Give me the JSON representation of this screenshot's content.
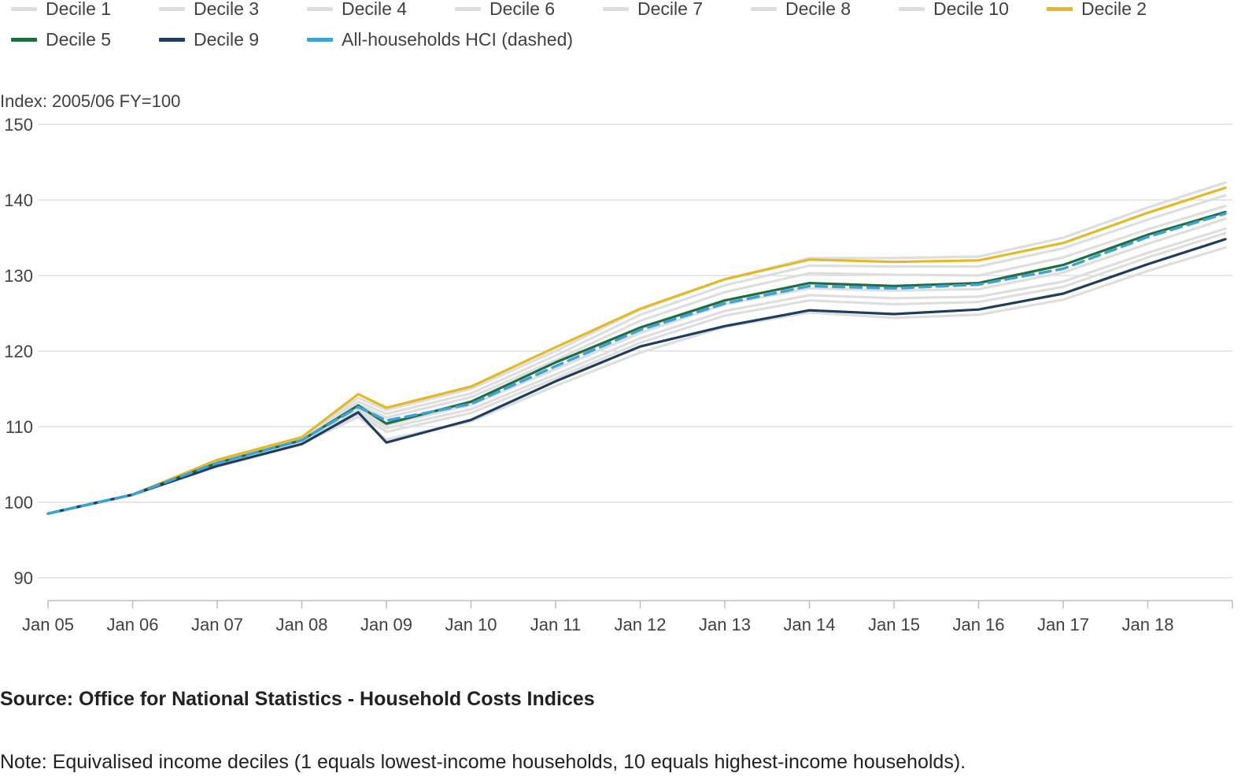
{
  "chart_data": {
    "type": "line",
    "y_unit_label": "Index: 2005/06 FY=100",
    "source": "Source: Office for National Statistics - Household Costs Indices",
    "note": "Note: Equivalised income deciles (1 equals lowest-income households, 10 equals highest-income households).",
    "ylim": [
      90,
      150
    ],
    "yticks": [
      90,
      100,
      110,
      120,
      130,
      140,
      150
    ],
    "grid": true,
    "legend_position": "top",
    "x_start": "2005-01",
    "x_end": "2018-12",
    "xticks": [
      {
        "x": "2005-01",
        "label": "Jan 05"
      },
      {
        "x": "2006-01",
        "label": "Jan 06"
      },
      {
        "x": "2007-01",
        "label": "Jan 07"
      },
      {
        "x": "2008-01",
        "label": "Jan 08"
      },
      {
        "x": "2009-01",
        "label": "Jan 09"
      },
      {
        "x": "2010-01",
        "label": "Jan 10"
      },
      {
        "x": "2011-01",
        "label": "Jan 11"
      },
      {
        "x": "2012-01",
        "label": "Jan 12"
      },
      {
        "x": "2013-01",
        "label": "Jan 13"
      },
      {
        "x": "2014-01",
        "label": "Jan 14"
      },
      {
        "x": "2015-01",
        "label": "Jan 15"
      },
      {
        "x": "2016-01",
        "label": "Jan 16"
      },
      {
        "x": "2017-01",
        "label": "Jan 17"
      },
      {
        "x": "2018-01",
        "label": "Jan 18"
      }
    ],
    "series": [
      {
        "name": "Decile 1",
        "color": "#dedede",
        "points": [
          [
            "2005-01",
            98.5
          ],
          [
            "2006-01",
            101.0
          ],
          [
            "2007-01",
            105.5
          ],
          [
            "2008-01",
            108.6
          ],
          [
            "2008-09",
            113.8
          ],
          [
            "2009-01",
            112.2
          ],
          [
            "2010-01",
            115.0
          ],
          [
            "2011-01",
            120.0
          ],
          [
            "2012-01",
            125.5
          ],
          [
            "2013-01",
            129.5
          ],
          [
            "2014-01",
            132.3
          ],
          [
            "2015-01",
            132.3
          ],
          [
            "2016-01",
            132.5
          ],
          [
            "2017-01",
            135.0
          ],
          [
            "2018-01",
            139.0
          ],
          [
            "2018-12",
            142.3
          ]
        ]
      },
      {
        "name": "Decile 3",
        "color": "#dedede",
        "points": [
          [
            "2005-01",
            98.5
          ],
          [
            "2006-01",
            101.0
          ],
          [
            "2007-01",
            105.4
          ],
          [
            "2008-01",
            108.5
          ],
          [
            "2008-09",
            113.3
          ],
          [
            "2009-01",
            111.7
          ],
          [
            "2010-01",
            114.4
          ],
          [
            "2011-01",
            119.4
          ],
          [
            "2012-01",
            124.8
          ],
          [
            "2013-01",
            128.7
          ],
          [
            "2014-01",
            131.3
          ],
          [
            "2015-01",
            131.2
          ],
          [
            "2016-01",
            131.2
          ],
          [
            "2017-01",
            133.6
          ],
          [
            "2018-01",
            137.4
          ],
          [
            "2018-12",
            140.6
          ]
        ]
      },
      {
        "name": "Decile 4",
        "color": "#dedede",
        "points": [
          [
            "2005-01",
            98.5
          ],
          [
            "2006-01",
            101.0
          ],
          [
            "2007-01",
            105.3
          ],
          [
            "2008-01",
            108.4
          ],
          [
            "2008-09",
            112.9
          ],
          [
            "2009-01",
            111.2
          ],
          [
            "2010-01",
            113.9
          ],
          [
            "2011-01",
            118.8
          ],
          [
            "2012-01",
            124.0
          ],
          [
            "2013-01",
            127.8
          ],
          [
            "2014-01",
            130.3
          ],
          [
            "2015-01",
            130.1
          ],
          [
            "2016-01",
            130.0
          ],
          [
            "2017-01",
            132.4
          ],
          [
            "2018-01",
            136.1
          ],
          [
            "2018-12",
            139.2
          ]
        ]
      },
      {
        "name": "Decile 6",
        "color": "#dedede",
        "points": [
          [
            "2005-01",
            98.5
          ],
          [
            "2006-01",
            101.0
          ],
          [
            "2007-01",
            105.1
          ],
          [
            "2008-01",
            108.1
          ],
          [
            "2008-09",
            112.3
          ],
          [
            "2009-01",
            110.2
          ],
          [
            "2010-01",
            112.9
          ],
          [
            "2011-01",
            117.6
          ],
          [
            "2012-01",
            122.4
          ],
          [
            "2013-01",
            126.2
          ],
          [
            "2014-01",
            128.3
          ],
          [
            "2015-01",
            128.0
          ],
          [
            "2016-01",
            128.2
          ],
          [
            "2017-01",
            130.4
          ],
          [
            "2018-01",
            134.2
          ],
          [
            "2018-12",
            137.5
          ]
        ]
      },
      {
        "name": "Decile 7",
        "color": "#dedede",
        "points": [
          [
            "2005-01",
            98.5
          ],
          [
            "2006-01",
            101.0
          ],
          [
            "2007-01",
            105.0
          ],
          [
            "2008-01",
            108.0
          ],
          [
            "2008-09",
            112.0
          ],
          [
            "2009-01",
            109.8
          ],
          [
            "2010-01",
            112.3
          ],
          [
            "2011-01",
            116.9
          ],
          [
            "2012-01",
            121.7
          ],
          [
            "2013-01",
            125.3
          ],
          [
            "2014-01",
            127.4
          ],
          [
            "2015-01",
            127.0
          ],
          [
            "2016-01",
            127.2
          ],
          [
            "2017-01",
            129.2
          ],
          [
            "2018-01",
            133.0
          ],
          [
            "2018-12",
            136.2
          ]
        ]
      },
      {
        "name": "Decile 8",
        "color": "#dedede",
        "points": [
          [
            "2005-01",
            98.5
          ],
          [
            "2006-01",
            101.0
          ],
          [
            "2007-01",
            104.9
          ],
          [
            "2008-01",
            107.9
          ],
          [
            "2008-09",
            111.7
          ],
          [
            "2009-01",
            109.3
          ],
          [
            "2010-01",
            111.8
          ],
          [
            "2011-01",
            116.4
          ],
          [
            "2012-01",
            121.1
          ],
          [
            "2013-01",
            124.7
          ],
          [
            "2014-01",
            126.7
          ],
          [
            "2015-01",
            126.2
          ],
          [
            "2016-01",
            126.5
          ],
          [
            "2017-01",
            128.5
          ],
          [
            "2018-01",
            132.4
          ],
          [
            "2018-12",
            135.6
          ]
        ]
      },
      {
        "name": "Decile 10",
        "color": "#dedede",
        "points": [
          [
            "2005-01",
            98.5
          ],
          [
            "2006-01",
            101.0
          ],
          [
            "2007-01",
            104.7
          ],
          [
            "2008-01",
            107.7
          ],
          [
            "2008-09",
            111.3
          ],
          [
            "2009-01",
            108.3
          ],
          [
            "2010-01",
            110.7
          ],
          [
            "2011-01",
            115.4
          ],
          [
            "2012-01",
            119.8
          ],
          [
            "2013-01",
            123.2
          ],
          [
            "2014-01",
            125.1
          ],
          [
            "2015-01",
            124.4
          ],
          [
            "2016-01",
            124.8
          ],
          [
            "2017-01",
            126.8
          ],
          [
            "2018-01",
            130.6
          ],
          [
            "2018-12",
            133.7
          ]
        ]
      },
      {
        "name": "Decile 2",
        "color": "#e3b925",
        "points": [
          [
            "2005-01",
            98.5
          ],
          [
            "2006-01",
            101.0
          ],
          [
            "2007-01",
            105.6
          ],
          [
            "2008-01",
            108.6
          ],
          [
            "2008-09",
            114.3
          ],
          [
            "2009-01",
            112.5
          ],
          [
            "2010-01",
            115.3
          ],
          [
            "2011-01",
            120.5
          ],
          [
            "2012-01",
            125.6
          ],
          [
            "2013-01",
            129.5
          ],
          [
            "2014-01",
            132.1
          ],
          [
            "2015-01",
            131.8
          ],
          [
            "2016-01",
            132.0
          ],
          [
            "2017-01",
            134.3
          ],
          [
            "2018-01",
            138.3
          ],
          [
            "2018-12",
            141.6
          ]
        ]
      },
      {
        "name": "Decile 5",
        "color": "#206d3e",
        "points": [
          [
            "2005-01",
            98.5
          ],
          [
            "2006-01",
            101.0
          ],
          [
            "2007-01",
            105.2
          ],
          [
            "2008-01",
            108.2
          ],
          [
            "2008-09",
            112.8
          ],
          [
            "2009-01",
            110.4
          ],
          [
            "2010-01",
            113.3
          ],
          [
            "2011-01",
            118.5
          ],
          [
            "2012-01",
            123.1
          ],
          [
            "2013-01",
            126.7
          ],
          [
            "2014-01",
            129.0
          ],
          [
            "2015-01",
            128.6
          ],
          [
            "2016-01",
            129.0
          ],
          [
            "2017-01",
            131.4
          ],
          [
            "2018-01",
            135.4
          ],
          [
            "2018-12",
            138.4
          ]
        ]
      },
      {
        "name": "Decile 9",
        "color": "#1f3d5f",
        "points": [
          [
            "2005-01",
            98.5
          ],
          [
            "2006-01",
            101.0
          ],
          [
            "2007-01",
            104.8
          ],
          [
            "2008-01",
            107.7
          ],
          [
            "2008-09",
            111.9
          ],
          [
            "2009-01",
            107.9
          ],
          [
            "2010-01",
            110.9
          ],
          [
            "2011-01",
            116.0
          ],
          [
            "2012-01",
            120.6
          ],
          [
            "2013-01",
            123.3
          ],
          [
            "2014-01",
            125.4
          ],
          [
            "2015-01",
            124.9
          ],
          [
            "2016-01",
            125.5
          ],
          [
            "2017-01",
            127.6
          ],
          [
            "2018-01",
            131.5
          ],
          [
            "2018-12",
            134.8
          ]
        ]
      },
      {
        "name": "All-households HCI (dashed)",
        "color": "#3ca3d8",
        "dashed": true,
        "points": [
          [
            "2005-01",
            98.5
          ],
          [
            "2006-01",
            101.0
          ],
          [
            "2007-01",
            105.2
          ],
          [
            "2008-01",
            108.2
          ],
          [
            "2008-09",
            112.6
          ],
          [
            "2009-01",
            110.8
          ],
          [
            "2010-01",
            113.0
          ],
          [
            "2011-01",
            118.0
          ],
          [
            "2012-01",
            122.8
          ],
          [
            "2013-01",
            126.3
          ],
          [
            "2014-01",
            128.6
          ],
          [
            "2015-01",
            128.3
          ],
          [
            "2016-01",
            128.8
          ],
          [
            "2017-01",
            130.9
          ],
          [
            "2018-01",
            135.1
          ],
          [
            "2018-12",
            138.2
          ]
        ]
      }
    ]
  }
}
